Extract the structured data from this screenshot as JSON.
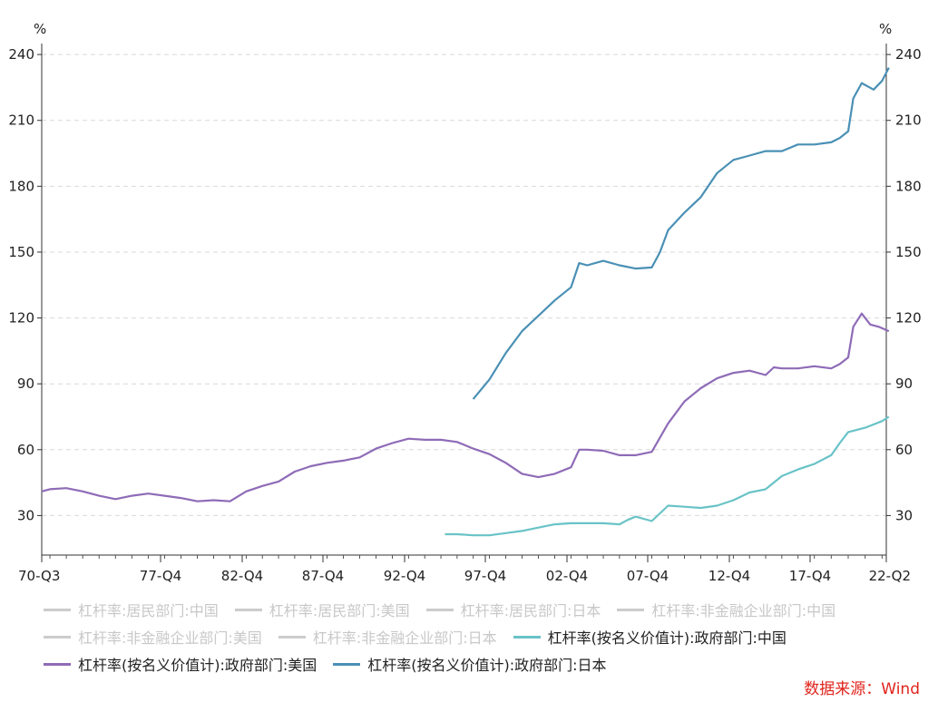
{
  "chart_data": {
    "type": "line",
    "y_unit_left": "%",
    "y_unit_right": "%",
    "ylim": [
      12,
      245
    ],
    "y_ticks": [
      30,
      60,
      90,
      120,
      150,
      180,
      210,
      240
    ],
    "x_ticks": [
      "70-Q3",
      "77-Q4",
      "82-Q4",
      "87-Q4",
      "92-Q4",
      "97-Q4",
      "02-Q4",
      "07-Q4",
      "12-Q4",
      "17-Q4",
      "22-Q2"
    ],
    "grid": true,
    "legend_position": "bottom",
    "legend": [
      {
        "name": "杠杆率:居民部门:中国",
        "color": "#cccccc",
        "active": false
      },
      {
        "name": "杠杆率:居民部门:美国",
        "color": "#cccccc",
        "active": false
      },
      {
        "name": "杠杆率:居民部门:日本",
        "color": "#cccccc",
        "active": false
      },
      {
        "name": "杠杆率:非金融企业部门:中国",
        "color": "#cccccc",
        "active": false
      },
      {
        "name": "杠杆率:非金融企业部门:美国",
        "color": "#cccccc",
        "active": false
      },
      {
        "name": "杠杆率:非金融企业部门:日本",
        "color": "#cccccc",
        "active": false
      },
      {
        "name": "杠杆率(按名义价值计):政府部门:中国",
        "color": "#69c3c7",
        "active": true
      },
      {
        "name": "杠杆率(按名义价值计):政府部门:美国",
        "color": "#8e6bb7",
        "active": true
      },
      {
        "name": "杠杆率(按名义价值计):政府部门:日本",
        "color": "#4a90b5",
        "active": true
      }
    ],
    "series": [
      {
        "name": "杠杆率(按名义价值计):政府部门:美国",
        "color": "#8e6bb7",
        "points": [
          [
            1970.5,
            41
          ],
          [
            1971,
            42
          ],
          [
            1972,
            42.5
          ],
          [
            1973,
            41
          ],
          [
            1974,
            39
          ],
          [
            1975,
            37.5
          ],
          [
            1976,
            39
          ],
          [
            1977,
            40
          ],
          [
            1978,
            39
          ],
          [
            1979,
            38
          ],
          [
            1980,
            36.5
          ],
          [
            1981,
            37
          ],
          [
            1982,
            36.5
          ],
          [
            1983,
            41
          ],
          [
            1984,
            43.5
          ],
          [
            1985,
            45.5
          ],
          [
            1986,
            50
          ],
          [
            1987,
            52.5
          ],
          [
            1988,
            54
          ],
          [
            1989,
            55
          ],
          [
            1990,
            56.5
          ],
          [
            1991,
            60.5
          ],
          [
            1992,
            63
          ],
          [
            1993,
            65
          ],
          [
            1994,
            64.5
          ],
          [
            1995,
            64.5
          ],
          [
            1996,
            63.5
          ],
          [
            1997,
            60.5
          ],
          [
            1998,
            58
          ],
          [
            1999,
            54
          ],
          [
            2000,
            49
          ],
          [
            2001,
            47.5
          ],
          [
            2002,
            49
          ],
          [
            2003,
            52
          ],
          [
            2003.5,
            60
          ],
          [
            2004,
            60
          ],
          [
            2005,
            59.5
          ],
          [
            2006,
            57.5
          ],
          [
            2007,
            57.5
          ],
          [
            2008,
            59
          ],
          [
            2009,
            72
          ],
          [
            2010,
            82
          ],
          [
            2011,
            88
          ],
          [
            2012,
            92.5
          ],
          [
            2013,
            95
          ],
          [
            2014,
            96
          ],
          [
            2015,
            94
          ],
          [
            2015.5,
            97.5
          ],
          [
            2016,
            97
          ],
          [
            2017,
            97
          ],
          [
            2018,
            98
          ],
          [
            2019,
            97
          ],
          [
            2019.5,
            99
          ],
          [
            2020,
            102
          ],
          [
            2020.3,
            116
          ],
          [
            2020.8,
            122
          ],
          [
            2021.3,
            117
          ],
          [
            2021.8,
            116
          ],
          [
            2022.4,
            114
          ]
        ]
      },
      {
        "name": "杠杆率(按名义价值计):政府部门:日本",
        "color": "#4a90b5",
        "points": [
          [
            1997,
            83
          ],
          [
            1998,
            92
          ],
          [
            1999,
            104
          ],
          [
            2000,
            114
          ],
          [
            2001,
            121
          ],
          [
            2002,
            128
          ],
          [
            2003,
            134
          ],
          [
            2003.5,
            145
          ],
          [
            2004,
            144
          ],
          [
            2005,
            146
          ],
          [
            2006,
            144
          ],
          [
            2007,
            142.5
          ],
          [
            2008,
            143
          ],
          [
            2008.5,
            150
          ],
          [
            2009,
            160
          ],
          [
            2010,
            168
          ],
          [
            2011,
            175
          ],
          [
            2012,
            186
          ],
          [
            2013,
            192
          ],
          [
            2014,
            194
          ],
          [
            2015,
            196
          ],
          [
            2016,
            196
          ],
          [
            2017,
            199
          ],
          [
            2018,
            199
          ],
          [
            2019,
            200
          ],
          [
            2019.5,
            202
          ],
          [
            2020,
            205
          ],
          [
            2020.3,
            220
          ],
          [
            2020.8,
            227
          ],
          [
            2021.5,
            224
          ],
          [
            2022,
            228
          ],
          [
            2022.4,
            234
          ]
        ]
      },
      {
        "name": "杠杆率(按名义价值计):政府部门:中国",
        "color": "#69c3c7",
        "points": [
          [
            1995.25,
            21.5
          ],
          [
            1996,
            21.5
          ],
          [
            1997,
            21
          ],
          [
            1998,
            21
          ],
          [
            1999,
            22
          ],
          [
            2000,
            23
          ],
          [
            2001,
            24.5
          ],
          [
            2002,
            26
          ],
          [
            2003,
            26.5
          ],
          [
            2004,
            26.5
          ],
          [
            2005,
            26.5
          ],
          [
            2006,
            26
          ],
          [
            2006.5,
            28
          ],
          [
            2007,
            29.5
          ],
          [
            2008,
            27.5
          ],
          [
            2009,
            34.5
          ],
          [
            2010,
            34
          ],
          [
            2011,
            33.5
          ],
          [
            2012,
            34.5
          ],
          [
            2013,
            37
          ],
          [
            2014,
            40.5
          ],
          [
            2015,
            42
          ],
          [
            2016,
            48
          ],
          [
            2017,
            51
          ],
          [
            2018,
            53.5
          ],
          [
            2019,
            57.5
          ],
          [
            2019.5,
            63
          ],
          [
            2020,
            68
          ],
          [
            2021,
            70
          ],
          [
            2022,
            73
          ],
          [
            2022.4,
            75
          ]
        ]
      }
    ]
  },
  "source_text": "数据来源：Wind"
}
